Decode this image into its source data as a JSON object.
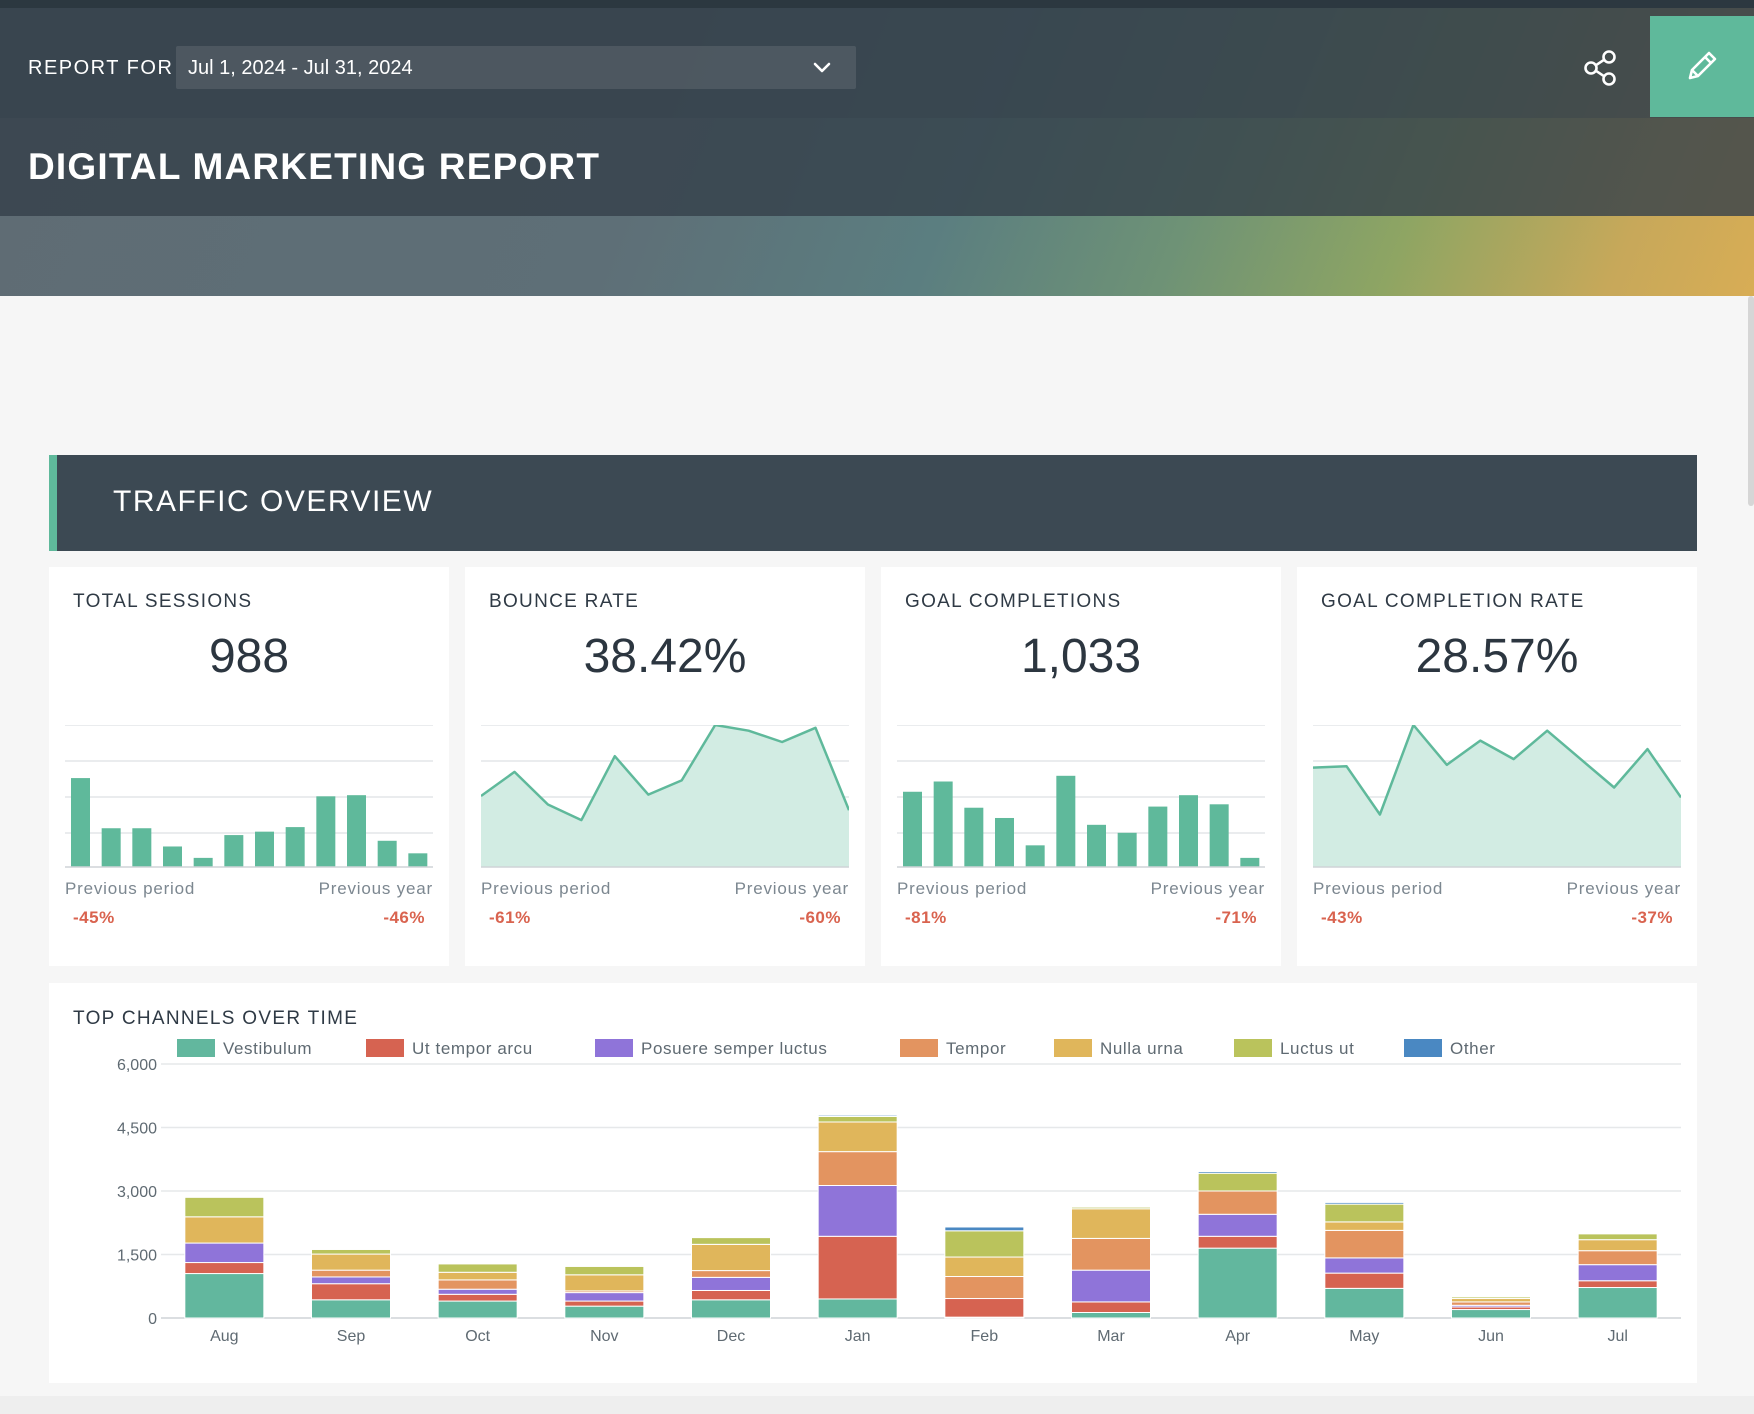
{
  "header": {
    "report_for_label": "REPORT FOR",
    "date_range": "Jul 1, 2024 - Jul 31, 2024",
    "title": "DIGITAL MARKETING REPORT",
    "icons": {
      "date_dropdown": "chevron-down-icon",
      "share": "share-icon",
      "edit": "pencil-icon"
    }
  },
  "colors": {
    "accent": "#5fb99b",
    "header_dark": "#3c4953",
    "negative": "#d9634f",
    "spark_fill": "#d2ece3"
  },
  "section": {
    "title": "TRAFFIC OVERVIEW"
  },
  "kpis": [
    {
      "label": "TOTAL SESSIONS",
      "value": "988",
      "chart_type": "bar",
      "spark": [
        78,
        34,
        34,
        18,
        8,
        28,
        31,
        35,
        62,
        63,
        23,
        12
      ],
      "prev_period_label": "Previous period",
      "prev_period_value": "-45%",
      "prev_year_label": "Previous year",
      "prev_year_value": "-46%"
    },
    {
      "label": "BOUNCE RATE",
      "value": "38.42%",
      "chart_type": "area",
      "spark": [
        50,
        67,
        44,
        33,
        78,
        51,
        61,
        100,
        96,
        88,
        98,
        40
      ],
      "prev_period_label": "Previous period",
      "prev_period_value": "-61%",
      "prev_year_label": "Previous year",
      "prev_year_value": "-60%"
    },
    {
      "label": "GOAL COMPLETIONS",
      "value": "1,033",
      "chart_type": "bar",
      "spark": [
        66,
        75,
        52,
        43,
        19,
        80,
        37,
        30,
        53,
        63,
        55,
        8
      ],
      "prev_period_label": "Previous period",
      "prev_period_value": "-81%",
      "prev_year_label": "Previous year",
      "prev_year_value": "-71%"
    },
    {
      "label": "GOAL COMPLETION RATE",
      "value": "28.57%",
      "chart_type": "area",
      "spark": [
        70,
        71,
        37,
        100,
        72,
        89,
        76,
        96,
        76,
        56,
        83,
        49
      ],
      "prev_period_label": "Previous period",
      "prev_period_value": "-43%",
      "prev_year_label": "Previous year",
      "prev_year_value": "-37%"
    }
  ],
  "chart_data": {
    "type": "bar",
    "stacked": true,
    "title": "TOP CHANNELS OVER TIME",
    "categories": [
      "Aug",
      "Sep",
      "Oct",
      "Nov",
      "Dec",
      "Jan",
      "Feb",
      "Mar",
      "Apr",
      "May",
      "Jun",
      "Jul"
    ],
    "ylim": [
      0,
      6000
    ],
    "yticks": [
      0,
      1500,
      3000,
      4500,
      6000
    ],
    "ytick_labels": [
      "0",
      "1,500",
      "3,000",
      "4,500",
      "6,000"
    ],
    "series": [
      {
        "name": "Vestibulum",
        "color": "#62b79e",
        "values": [
          1050,
          430,
          400,
          280,
          430,
          450,
          20,
          130,
          1650,
          700,
          200,
          720
        ]
      },
      {
        "name": "Ut tempor arcu",
        "color": "#d66351",
        "values": [
          260,
          380,
          160,
          120,
          220,
          1480,
          440,
          250,
          280,
          360,
          60,
          160
        ]
      },
      {
        "name": "Posuere semper luctus",
        "color": "#8f74d9",
        "values": [
          460,
          160,
          120,
          200,
          310,
          1200,
          0,
          750,
          520,
          360,
          40,
          380
        ]
      },
      {
        "name": "Tempor",
        "color": "#e39460",
        "values": [
          0,
          160,
          220,
          40,
          160,
          800,
          520,
          750,
          550,
          650,
          80,
          330
        ]
      },
      {
        "name": "Nulla urna",
        "color": "#e0b65b",
        "values": [
          620,
          380,
          180,
          380,
          620,
          700,
          460,
          700,
          0,
          200,
          80,
          260
        ]
      },
      {
        "name": "Luctus ut",
        "color": "#bac35c",
        "values": [
          460,
          110,
          200,
          200,
          160,
          130,
          620,
          40,
          420,
          420,
          40,
          140
        ]
      },
      {
        "name": "Other",
        "color": "#4a88c2",
        "values": [
          0,
          20,
          10,
          10,
          20,
          30,
          90,
          20,
          40,
          40,
          10,
          20
        ]
      }
    ]
  }
}
